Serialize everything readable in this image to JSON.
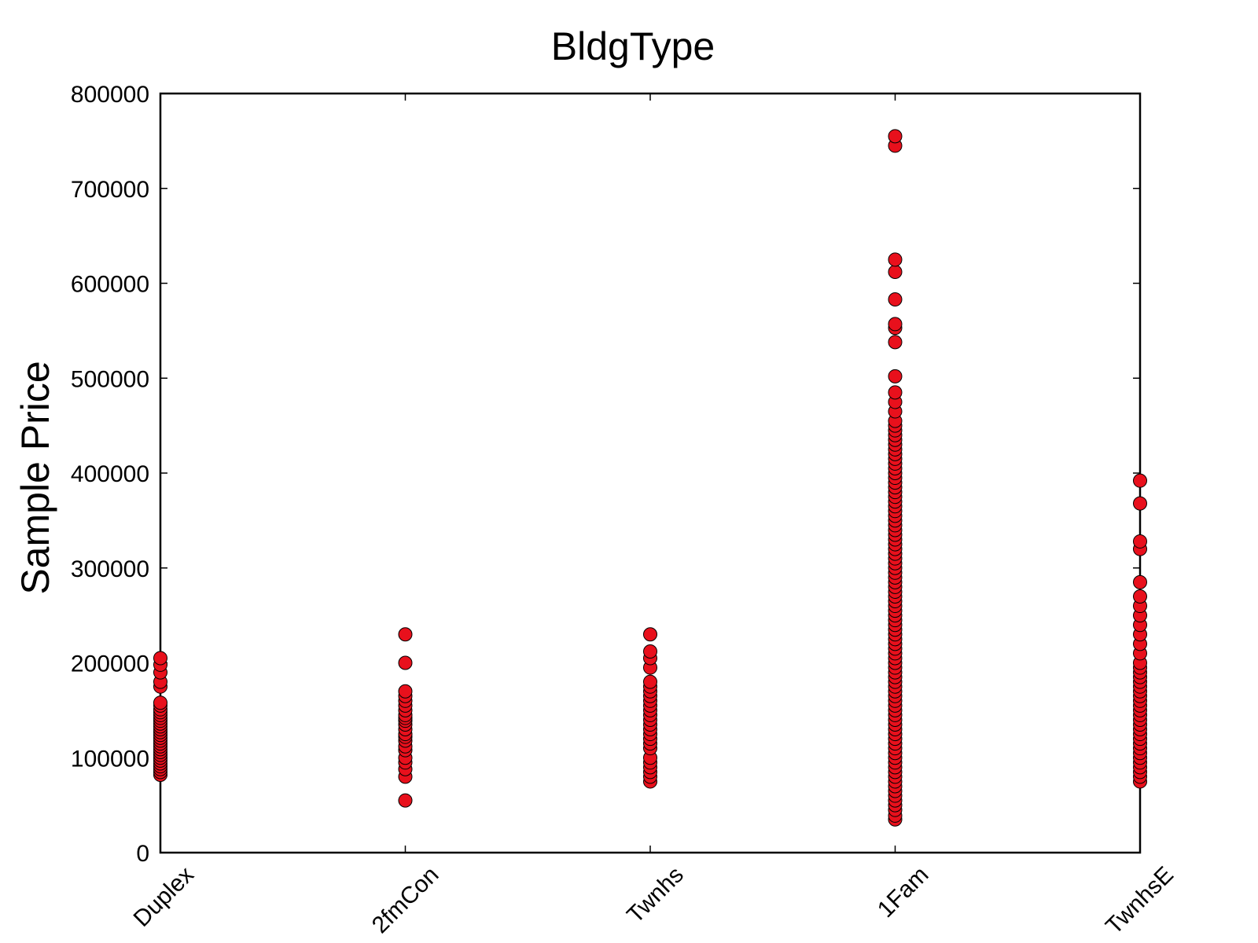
{
  "chart_data": {
    "type": "scatter",
    "title": "BldgType",
    "xlabel": "",
    "ylabel": "Sample Price",
    "ylim": [
      0,
      800000
    ],
    "yticks": [
      0,
      100000,
      200000,
      300000,
      400000,
      500000,
      600000,
      700000,
      800000
    ],
    "ytick_labels": [
      "0",
      "100000",
      "200000",
      "300000",
      "400000",
      "500000",
      "600000",
      "700000",
      "800000"
    ],
    "categories": [
      "Duplex",
      "2fmCon",
      "Twnhs",
      "1Fam",
      "TwnhsE"
    ],
    "grid": false,
    "marker_color": "#e8101c",
    "marker_edge_color": "#000000",
    "series": [
      {
        "category": "Duplex",
        "values": [
          82000,
          85000,
          88000,
          91000,
          94000,
          97000,
          100000,
          103000,
          106000,
          109000,
          112000,
          115000,
          118000,
          121000,
          124000,
          127000,
          130000,
          133000,
          136000,
          139000,
          142000,
          145000,
          148000,
          151000,
          155000,
          158000,
          175000,
          180000,
          190000,
          198000,
          205000
        ]
      },
      {
        "category": "2fmCon",
        "values": [
          55000,
          80000,
          88000,
          95000,
          100000,
          108000,
          112000,
          118000,
          122000,
          125000,
          130000,
          135000,
          139000,
          142000,
          145000,
          150000,
          155000,
          160000,
          165000,
          170000,
          200000,
          230000
        ]
      },
      {
        "category": "Twnhs",
        "values": [
          75000,
          80000,
          85000,
          90000,
          95000,
          100000,
          110000,
          115000,
          120000,
          125000,
          130000,
          135000,
          140000,
          145000,
          150000,
          155000,
          160000,
          165000,
          170000,
          175000,
          180000,
          195000,
          205000,
          212000,
          230000
        ]
      },
      {
        "category": "1Fam",
        "values": [
          35000,
          39000,
          45000,
          50000,
          55000,
          60000,
          65000,
          70000,
          75000,
          80000,
          85000,
          90000,
          95000,
          100000,
          105000,
          110000,
          115000,
          120000,
          125000,
          130000,
          135000,
          140000,
          145000,
          150000,
          155000,
          160000,
          165000,
          170000,
          175000,
          180000,
          185000,
          190000,
          195000,
          200000,
          205000,
          210000,
          215000,
          220000,
          225000,
          230000,
          235000,
          240000,
          245000,
          250000,
          255000,
          260000,
          265000,
          270000,
          275000,
          280000,
          285000,
          290000,
          295000,
          300000,
          305000,
          310000,
          315000,
          320000,
          325000,
          330000,
          335000,
          340000,
          345000,
          350000,
          355000,
          360000,
          365000,
          370000,
          375000,
          380000,
          385000,
          390000,
          395000,
          400000,
          405000,
          410000,
          415000,
          420000,
          425000,
          430000,
          435000,
          440000,
          445000,
          450000,
          455000,
          465000,
          475000,
          485000,
          502000,
          538000,
          553000,
          557000,
          583000,
          612000,
          625000,
          745000,
          755000
        ]
      },
      {
        "category": "TwnhsE",
        "values": [
          75000,
          80000,
          85000,
          90000,
          95000,
          100000,
          105000,
          110000,
          115000,
          120000,
          125000,
          130000,
          135000,
          140000,
          145000,
          150000,
          155000,
          160000,
          165000,
          170000,
          175000,
          180000,
          185000,
          190000,
          195000,
          200000,
          210000,
          220000,
          230000,
          240000,
          250000,
          260000,
          270000,
          285000,
          320000,
          328000,
          368000,
          392000
        ]
      }
    ]
  }
}
